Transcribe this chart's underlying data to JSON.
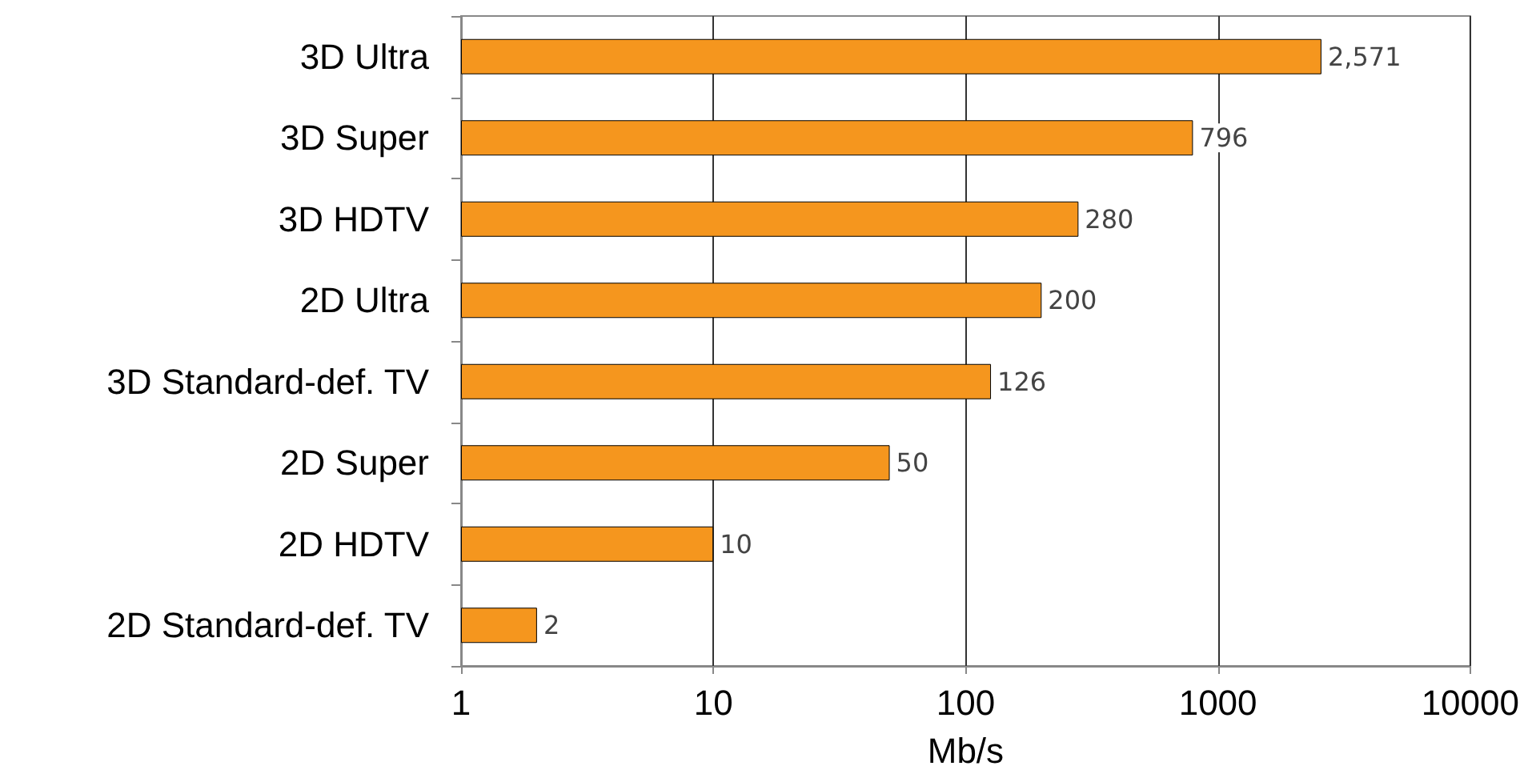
{
  "chart_data": {
    "type": "bar",
    "orientation": "horizontal",
    "xlabel": "Mb/s",
    "categories": [
      "3D Ultra",
      "3D Super",
      "3D HDTV",
      "2D Ultra",
      "3D Standard-def. TV",
      "2D Super",
      "2D HDTV",
      "2D Standard-def. TV"
    ],
    "values": [
      2571,
      796,
      280,
      200,
      126,
      50,
      10,
      2
    ],
    "value_labels": [
      "2,571",
      "796",
      "280",
      "200",
      "126",
      "50",
      "10",
      "2"
    ],
    "color": "#f5961e",
    "log": "x",
    "xlim": [
      1,
      10000
    ],
    "xticks": [
      1,
      10,
      100,
      1000,
      10000
    ],
    "grid": "x"
  }
}
